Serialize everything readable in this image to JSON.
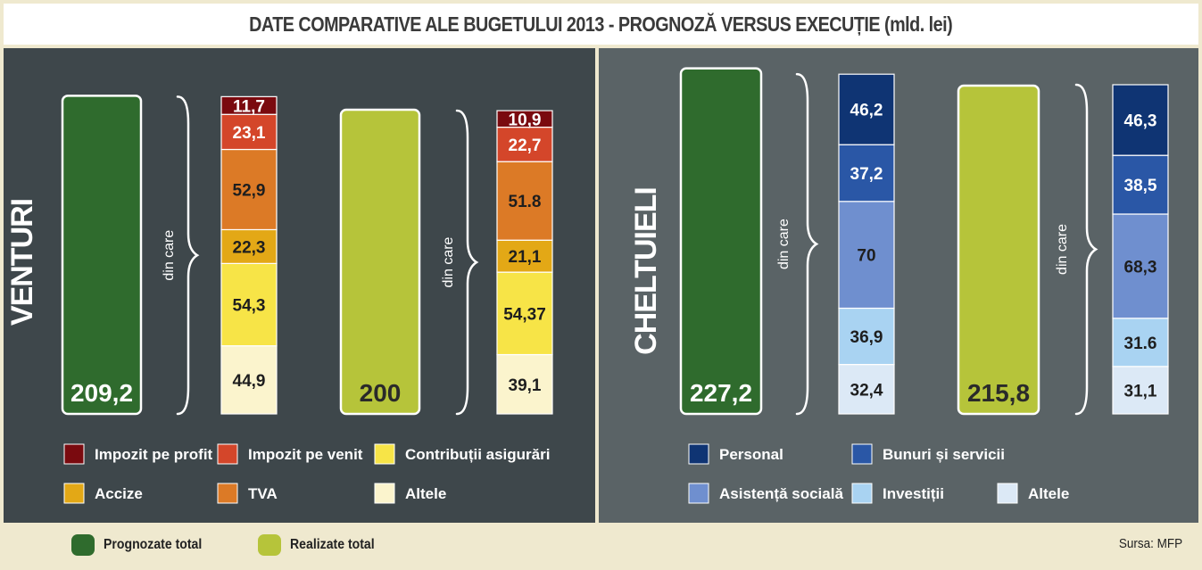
{
  "title": "DATE COMPARATIVE ALE BUGETULUI 2013 - PROGNOZĂ VERSUS EXECUȚIE (mld. lei)",
  "source": "Sursa: MFP",
  "footer_legend": [
    {
      "label": "Prognozate total",
      "color": "#2f6b2d"
    },
    {
      "label": "Realizate total",
      "color": "#b6c43a"
    }
  ],
  "chart_data": [
    {
      "type": "bar",
      "panel_label": "VENTURI",
      "brace_label": "din care",
      "totals": [
        {
          "name": "Prognozate total",
          "value": 209.2,
          "label": "209,2",
          "color": "#2f6b2d"
        },
        {
          "name": "Realizate total",
          "value": 200,
          "label": "200",
          "color": "#b6c43a"
        }
      ],
      "stack_order": [
        "Altele",
        "Contribuții asigurări",
        "Accize",
        "TVA",
        "Impozit pe venit",
        "Impozit pe profit"
      ],
      "stacks": [
        {
          "for": "Prognozate total",
          "values": [
            44.9,
            54.3,
            22.3,
            52.9,
            23.1,
            11.7
          ],
          "labels": [
            "44,9",
            "54,3",
            "22,3",
            "52,9",
            "23,1",
            "11,7"
          ]
        },
        {
          "for": "Realizate total",
          "values": [
            39.1,
            54.37,
            21.1,
            51.8,
            22.7,
            10.9
          ],
          "labels": [
            "39,1",
            "54,37",
            "21,1",
            "51.8",
            "22,7",
            "10,9"
          ]
        }
      ],
      "legend": [
        {
          "label": "Impozit pe profit",
          "color": "#7a0a0f"
        },
        {
          "label": "Impozit pe venit",
          "color": "#d4462a"
        },
        {
          "label": "Contribuții asigurări",
          "color": "#f7e447"
        },
        {
          "label": "Accize",
          "color": "#e3a816"
        },
        {
          "label": "TVA",
          "color": "#dc7a26"
        },
        {
          "label": "Altele",
          "color": "#fbf4cd"
        }
      ]
    },
    {
      "type": "bar",
      "panel_label": "CHELTUIELI",
      "brace_label": "din care",
      "totals": [
        {
          "name": "Prognozate total",
          "value": 227.2,
          "label": "227,2",
          "color": "#2f6b2d"
        },
        {
          "name": "Realizate total",
          "value": 215.8,
          "label": "215,8",
          "color": "#b6c43a"
        }
      ],
      "stack_order": [
        "Altele",
        "Investiții",
        "Asistență socială",
        "Bunuri și servicii",
        "Personal"
      ],
      "stacks": [
        {
          "for": "Prognozate total",
          "values": [
            32.4,
            36.9,
            70,
            37.2,
            46.2
          ],
          "labels": [
            "32,4",
            "36,9",
            "70",
            "37,2",
            "46,2"
          ]
        },
        {
          "for": "Realizate total",
          "values": [
            31.1,
            31.6,
            68.3,
            38.5,
            46.3
          ],
          "labels": [
            "31,1",
            "31.6",
            "68,3",
            "38,5",
            "46,3"
          ]
        }
      ],
      "legend": [
        {
          "label": "Personal",
          "color": "#0f3473"
        },
        {
          "label": "Bunuri și servicii",
          "color": "#2a57a6"
        },
        {
          "label": "Asistență socială",
          "color": "#6f8fcf"
        },
        {
          "label": "Investiții",
          "color": "#a9d3f2"
        },
        {
          "label": "Altele",
          "color": "#dce9f6"
        }
      ]
    }
  ]
}
